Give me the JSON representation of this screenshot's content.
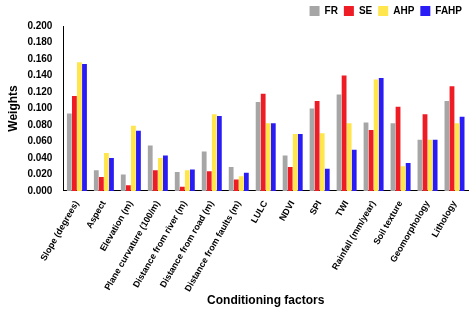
{
  "chart_data": {
    "type": "bar",
    "x_label": "Conditioning factors",
    "y_label": "Weights",
    "categories": [
      "Slope (degrees)",
      "Aspect",
      "Elevation (m)",
      "Plane curvature (100/m)",
      "Distance from river (m)",
      "Distance from road (m)",
      "Distance from faults (m)",
      "LULC",
      "NDVI",
      "SPI",
      "TWI",
      "Rainfall (mm/year)",
      "Soil texture",
      "Geomorphology",
      "Lithology"
    ],
    "series": [
      {
        "name": "FR",
        "color": "#a6a6a6",
        "values": [
          0.094,
          0.025,
          0.02,
          0.055,
          0.023,
          0.048,
          0.029,
          0.108,
          0.043,
          0.1,
          0.117,
          0.083,
          0.082,
          0.062,
          0.109
        ]
      },
      {
        "name": "SE",
        "color": "#ee1c25",
        "values": [
          0.115,
          0.017,
          0.007,
          0.025,
          0.005,
          0.024,
          0.014,
          0.118,
          0.029,
          0.109,
          0.14,
          0.074,
          0.102,
          0.093,
          0.127
        ]
      },
      {
        "name": "AHP",
        "color": "#ffe64d",
        "values": [
          0.156,
          0.046,
          0.079,
          0.04,
          0.025,
          0.093,
          0.018,
          0.082,
          0.069,
          0.07,
          0.082,
          0.135,
          0.03,
          0.062,
          0.082
        ]
      },
      {
        "name": "FAHP",
        "color": "#2a1cf5",
        "values": [
          0.154,
          0.04,
          0.073,
          0.043,
          0.026,
          0.091,
          0.022,
          0.082,
          0.069,
          0.027,
          0.05,
          0.137,
          0.034,
          0.062,
          0.09
        ]
      }
    ],
    "ylim": [
      0,
      0.2
    ],
    "yticks": [
      {
        "value": 0,
        "label": "0.000"
      },
      {
        "value": 0.02,
        "label": "0.020"
      },
      {
        "value": 0.04,
        "label": "0.040"
      },
      {
        "value": 0.06,
        "label": "0.060"
      },
      {
        "value": 0.08,
        "label": "0.080"
      },
      {
        "value": 0.1,
        "label": "0.100"
      },
      {
        "value": 0.12,
        "label": "0.120"
      },
      {
        "value": 0.14,
        "label": "0.140"
      },
      {
        "value": 0.16,
        "label": "0.160"
      },
      {
        "value": 0.18,
        "label": "0.180"
      },
      {
        "value": 0.2,
        "label": "0.200"
      }
    ],
    "grid": false,
    "legend": "top-right"
  }
}
